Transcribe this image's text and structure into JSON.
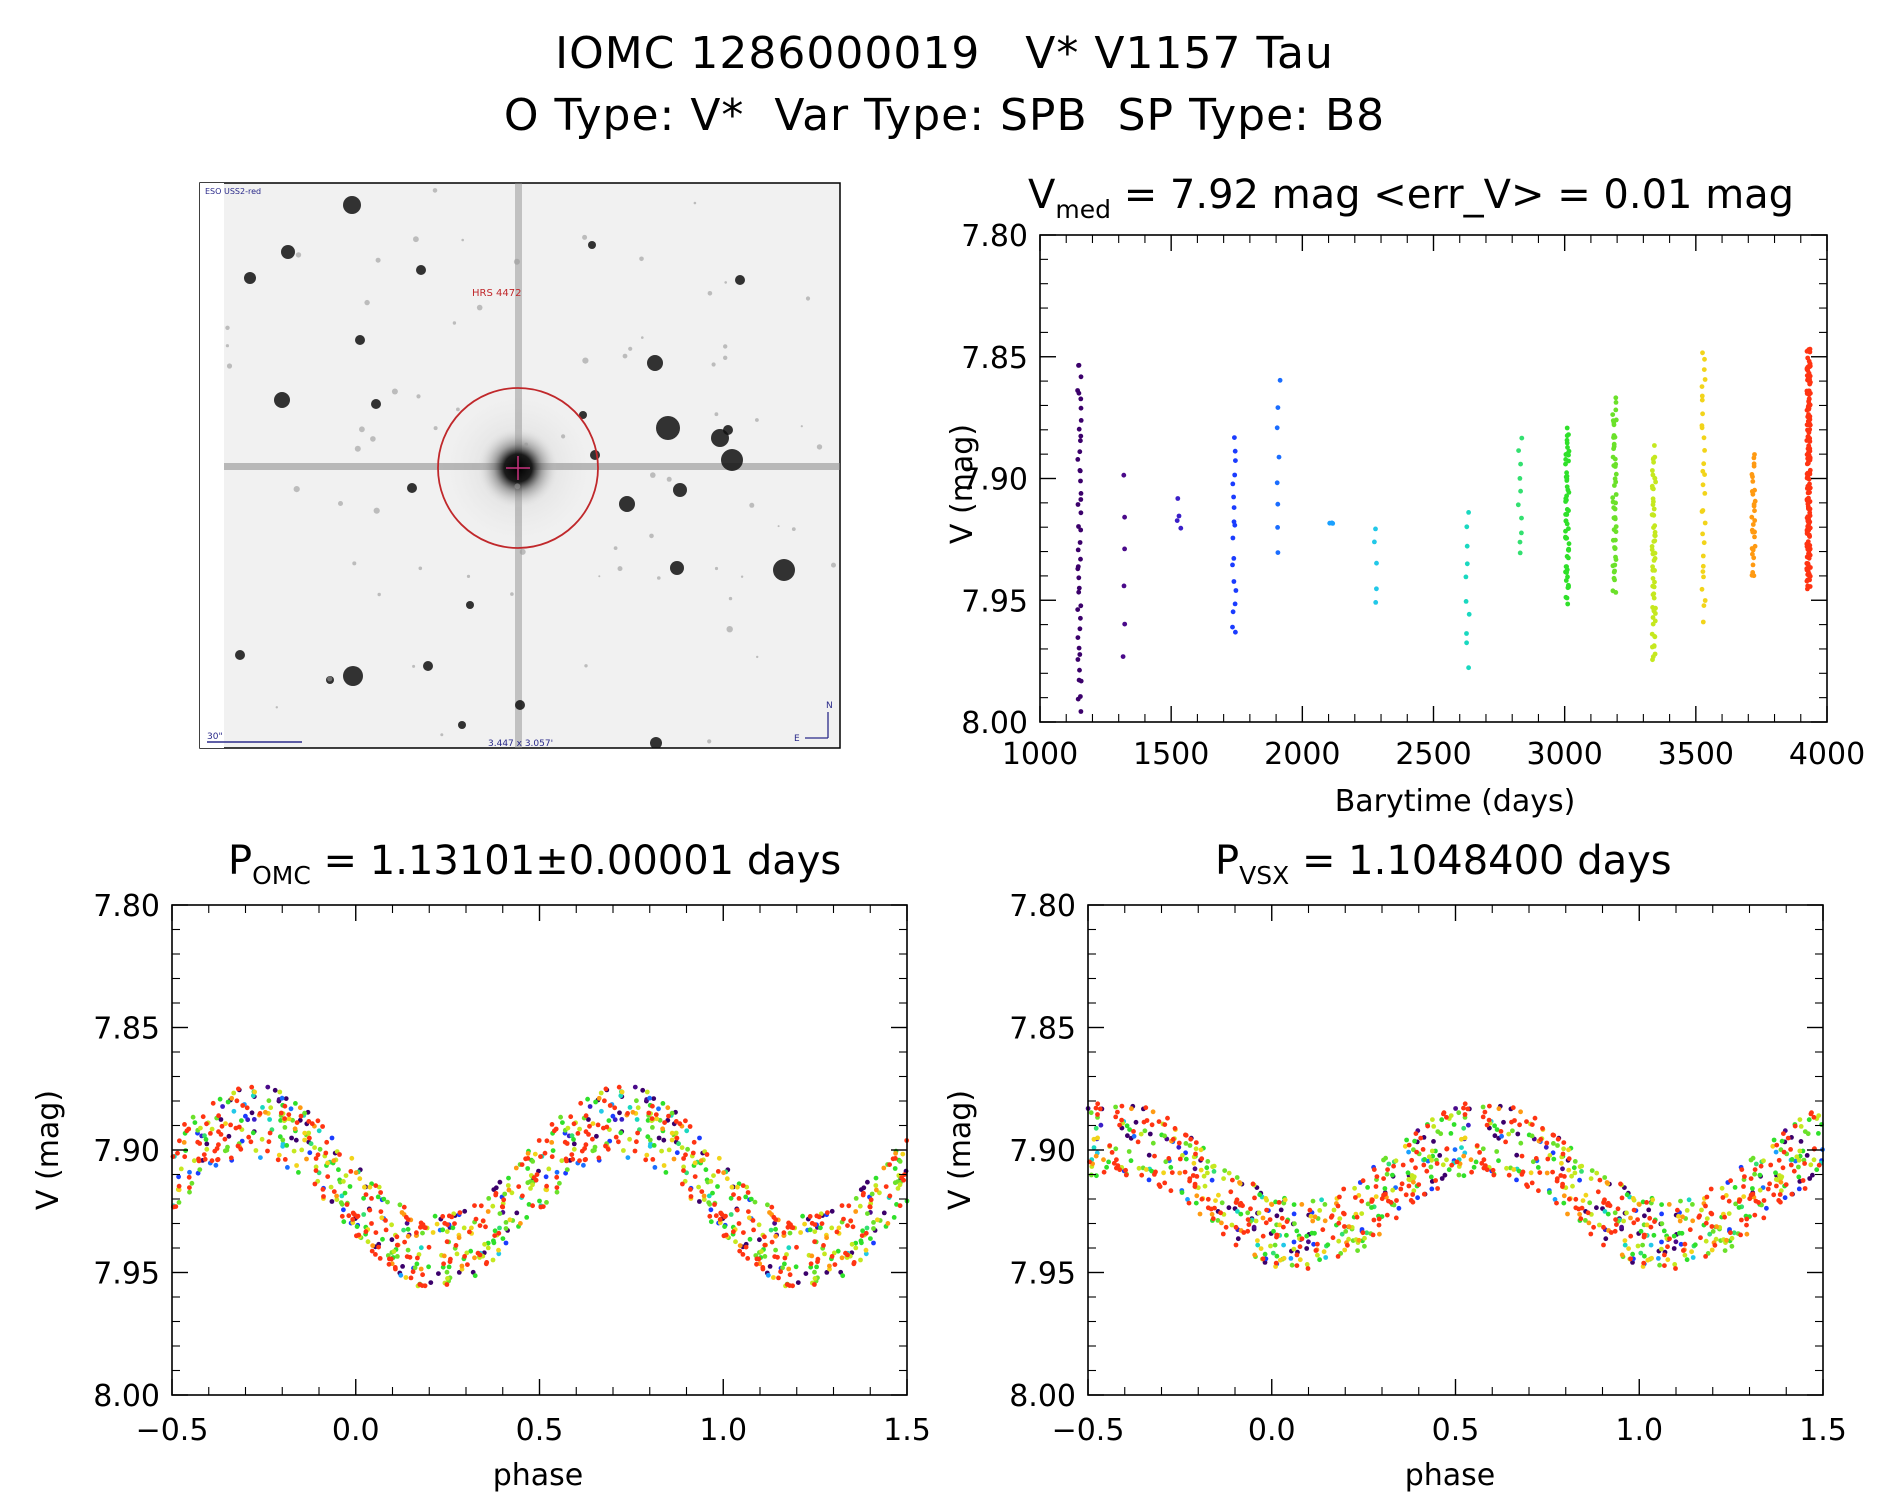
{
  "header": {
    "title": "IOMC 1286000019   V* V1157 Tau",
    "subtitle": "O Type: V*  Var Type: SPB  SP Type: B8"
  },
  "finder": {
    "label_survey": "ESO USS2-red",
    "label_target": "HRS 4472",
    "label_scale": "30\"",
    "label_fov": "3.447 x 3.057'",
    "label_north": "N",
    "label_east": "E"
  },
  "chart_data": [
    {
      "type": "scatter",
      "id": "lightcurve",
      "title_prefix": "V",
      "title_sub": "med",
      "title_rest": " = 7.92 mag <err_V> = 0.01 mag",
      "xlabel": "Barytime (days)",
      "ylabel": "V (mag)",
      "xlim": [
        1000,
        4000
      ],
      "ylim": [
        8.0,
        7.8
      ],
      "xticks": [
        "1000",
        "1500",
        "2000",
        "2500",
        "3000",
        "3500",
        "4000"
      ],
      "yticks": [
        "7.80",
        "7.85",
        "7.90",
        "7.95",
        "8.00"
      ],
      "colormap": "rainbow (time-coded)",
      "groups": [
        {
          "t": 1150,
          "vmin": 7.852,
          "vmax": 7.995,
          "n": 44,
          "color": "#3b006b"
        },
        {
          "t": 1320,
          "vmin": 7.899,
          "vmax": 7.974,
          "n": 6,
          "color": "#4a0a8a"
        },
        {
          "t": 1530,
          "vmin": 7.91,
          "vmax": 7.922,
          "n": 4,
          "color": "#3a1fc8"
        },
        {
          "t": 1740,
          "vmin": 7.882,
          "vmax": 7.965,
          "n": 18,
          "color": "#1a3cff"
        },
        {
          "t": 1910,
          "vmin": 7.86,
          "vmax": 7.932,
          "n": 8,
          "color": "#1a6dff"
        },
        {
          "t": 2110,
          "vmin": 7.917,
          "vmax": 7.92,
          "n": 3,
          "color": "#1aa0ff"
        },
        {
          "t": 2280,
          "vmin": 7.92,
          "vmax": 7.952,
          "n": 5,
          "color": "#22c8e8"
        },
        {
          "t": 2630,
          "vmin": 7.915,
          "vmax": 7.976,
          "n": 10,
          "color": "#19d8c0"
        },
        {
          "t": 2830,
          "vmin": 7.884,
          "vmax": 7.932,
          "n": 10,
          "color": "#33e070"
        },
        {
          "t": 3010,
          "vmin": 7.88,
          "vmax": 7.95,
          "n": 60,
          "color": "#2fe02a"
        },
        {
          "t": 3190,
          "vmin": 7.868,
          "vmax": 7.946,
          "n": 50,
          "color": "#6be12a"
        },
        {
          "t": 3340,
          "vmin": 7.888,
          "vmax": 7.975,
          "n": 60,
          "color": "#c5e81f"
        },
        {
          "t": 3530,
          "vmin": 7.847,
          "vmax": 7.957,
          "n": 30,
          "color": "#f2d41a"
        },
        {
          "t": 3720,
          "vmin": 7.891,
          "vmax": 7.941,
          "n": 30,
          "color": "#ff9a12"
        },
        {
          "t": 3930,
          "vmin": 7.848,
          "vmax": 7.944,
          "n": 170,
          "color": "#ff3412"
        }
      ]
    },
    {
      "type": "scatter",
      "id": "phase_omc",
      "title_prefix": "P",
      "title_sub": "OMC",
      "title_rest": " = 1.13101±0.00001 days",
      "xlabel": "phase",
      "ylabel": "V (mag)",
      "xlim": [
        -0.5,
        1.5
      ],
      "ylim": [
        8.0,
        7.8
      ],
      "xticks": [
        "−0.5",
        "0.0",
        "0.5",
        "1.0",
        "1.5"
      ],
      "yticks": [
        "7.80",
        "7.85",
        "7.90",
        "7.95",
        "8.00"
      ],
      "period_days": 1.13101,
      "mean_mag": 7.915,
      "amplitude_mag": 0.027,
      "phase_max_brightness": 0.72
    },
    {
      "type": "scatter",
      "id": "phase_vsx",
      "title_prefix": "P",
      "title_sub": "VSX",
      "title_rest": " = 1.1048400 days",
      "xlabel": "phase",
      "ylabel": "V (mag)",
      "xlim": [
        -0.5,
        1.5
      ],
      "ylim": [
        8.0,
        7.8
      ],
      "xticks": [
        "−0.5",
        "0.0",
        "0.5",
        "1.0",
        "1.5"
      ],
      "yticks": [
        "7.80",
        "7.85",
        "7.90",
        "7.95",
        "8.00"
      ],
      "period_days": 1.10484,
      "mean_mag": 7.915,
      "amplitude_mag": 0.02,
      "phase_max_brightness": 0.58
    }
  ]
}
